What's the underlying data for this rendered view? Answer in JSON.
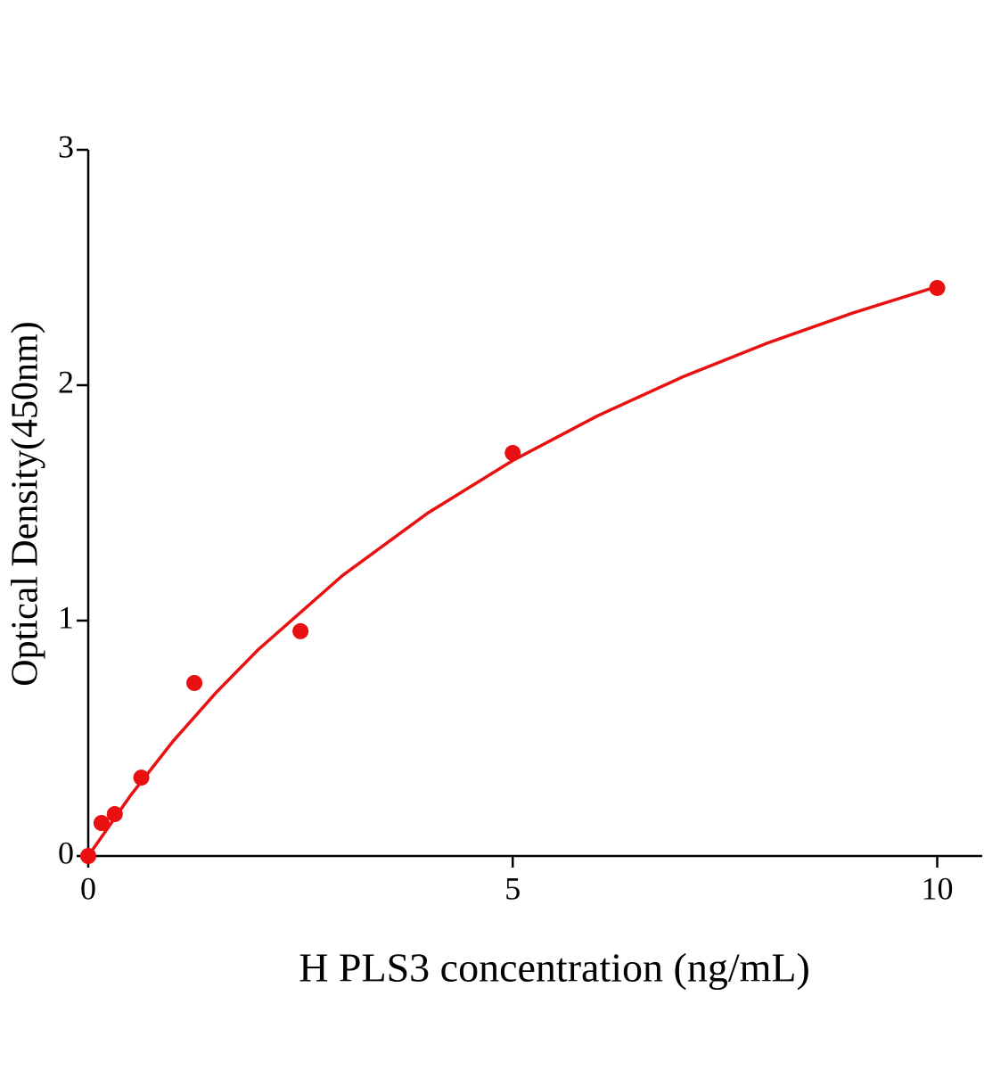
{
  "chart_data": {
    "type": "scatter",
    "x_label": "H PLS3 concentration (ng/mL)",
    "y_label": "Optical Density(450nm)",
    "xlim": [
      0,
      10.53
    ],
    "xticks": [
      0,
      5,
      10
    ],
    "ylim": [
      0,
      3
    ],
    "yticks": [
      0,
      1,
      2,
      3
    ],
    "points": {
      "color": "#e81010",
      "x": [
        0,
        0.156,
        0.3125,
        0.625,
        1.25,
        2.5,
        5,
        10
      ],
      "values": [
        0,
        0.14,
        0.178,
        0.333,
        0.735,
        0.955,
        1.712,
        2.413
      ]
    },
    "curve": {
      "color": "#e81010",
      "x": [
        0,
        0.5,
        1,
        1.5,
        2,
        3,
        4,
        5,
        6,
        7,
        8,
        9,
        10
      ],
      "values": [
        0,
        0.258,
        0.488,
        0.692,
        0.876,
        1.193,
        1.457,
        1.68,
        1.87,
        2.035,
        2.179,
        2.306,
        2.419
      ]
    }
  }
}
